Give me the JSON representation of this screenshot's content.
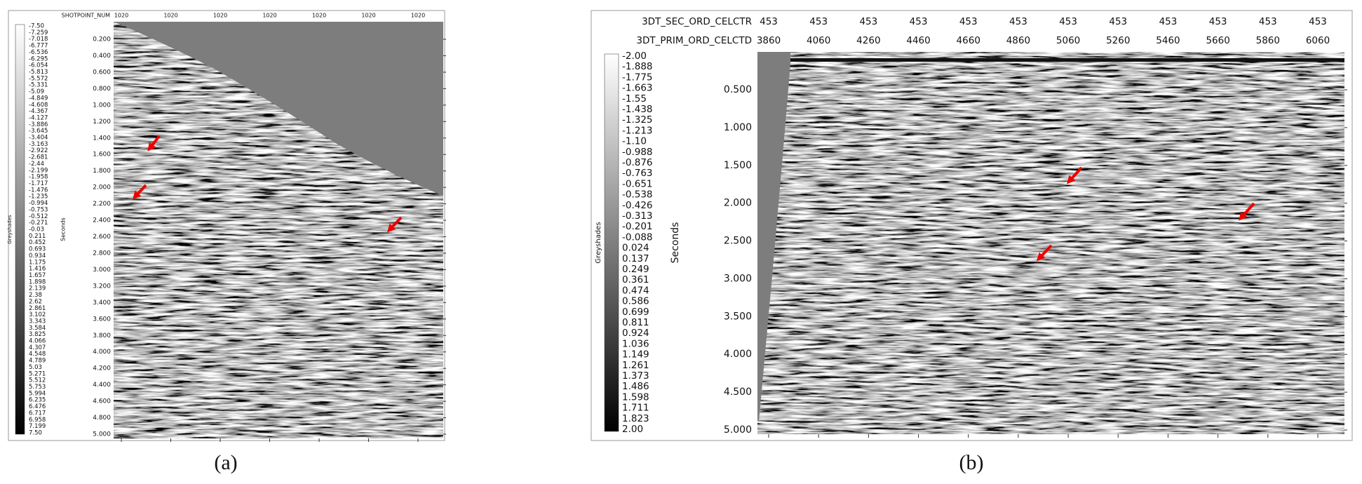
{
  "panels": [
    {
      "colorbar_label": "Greyshades",
      "axis_label": "Seconds",
      "top_axes": [
        {
          "label": "SHOTPOINT_NUM",
          "ticks": [
            "1020",
            "1020",
            "1020",
            "1020",
            "1020",
            "1020",
            "1020"
          ]
        }
      ],
      "y_ticks": [
        "0.200",
        "0.400",
        "0.600",
        "0.800",
        "1.000",
        "1.200",
        "1.400",
        "1.600",
        "1.800",
        "2.000",
        "2.200",
        "2.400",
        "2.600",
        "2.800",
        "3.000",
        "3.200",
        "3.400",
        "3.600",
        "3.800",
        "4.000",
        "4.200",
        "4.400",
        "4.600",
        "4.800",
        "5.000"
      ],
      "colorbar_ticks": [
        "-7.50",
        "-7.259",
        "-7.018",
        "-6.777",
        "-6.536",
        "-6.295",
        "-6.054",
        "-5.813",
        "-5.572",
        "-5.331",
        "-5.09",
        "-4.849",
        "-4.608",
        "-4.367",
        "-4.127",
        "-3.886",
        "-3.645",
        "-3.404",
        "-3.163",
        "-2.922",
        "-2.681",
        "-2.44",
        "-2.199",
        "-1.958",
        "-1.717",
        "-1.476",
        "-1.235",
        "-0.994",
        "-0.753",
        "-0.512",
        "-0.271",
        "-0.03",
        "0.211",
        "0.452",
        "0.693",
        "0.934",
        "1.175",
        "1.416",
        "1.657",
        "1.898",
        "2.139",
        "2.38",
        "2.62",
        "2.861",
        "3.102",
        "3.343",
        "3.584",
        "3.825",
        "4.066",
        "4.307",
        "4.548",
        "4.789",
        "5.03",
        "5.271",
        "5.512",
        "5.753",
        "5.994",
        "6.235",
        "6.476",
        "6.717",
        "6.958",
        "7.199",
        "7.50"
      ],
      "caption": "(a)"
    },
    {
      "colorbar_label": "Greyshades",
      "axis_label": "Seconds",
      "top_axes": [
        {
          "label": "3DT_SEC_ORD_CELCTR",
          "ticks": [
            "453",
            "453",
            "453",
            "453",
            "453",
            "453",
            "453",
            "453",
            "453",
            "453",
            "453",
            "453"
          ]
        },
        {
          "label": "3DT_PRIM_ORD_CELCTD",
          "ticks": [
            "3860",
            "4060",
            "4260",
            "4460",
            "4660",
            "4860",
            "5060",
            "5260",
            "5460",
            "5660",
            "5860",
            "6060"
          ]
        }
      ],
      "y_ticks": [
        "0.500",
        "1.000",
        "1.500",
        "2.000",
        "2.500",
        "3.000",
        "3.500",
        "4.000",
        "4.500",
        "5.000"
      ],
      "colorbar_ticks": [
        "-2.00",
        "-1.888",
        "-1.775",
        "-1.663",
        "-1.55",
        "-1.438",
        "-1.325",
        "-1.213",
        "-1.10",
        "-0.988",
        "-0.876",
        "-0.763",
        "-0.651",
        "-0.538",
        "-0.426",
        "-0.313",
        "-0.201",
        "-0.088",
        "0.024",
        "0.137",
        "0.249",
        "0.361",
        "0.474",
        "0.586",
        "0.699",
        "0.811",
        "0.924",
        "1.036",
        "1.149",
        "1.261",
        "1.373",
        "1.486",
        "1.598",
        "1.711",
        "1.823",
        "2.00"
      ],
      "caption": "(b)"
    }
  ]
}
